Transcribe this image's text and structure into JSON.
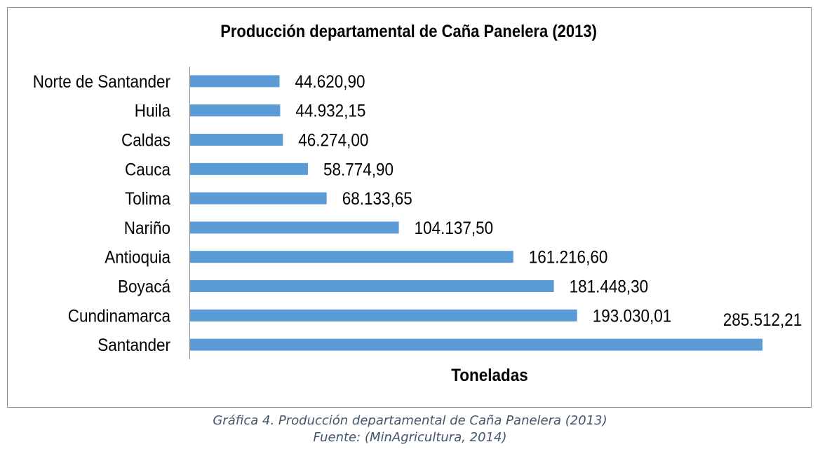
{
  "chart_data": {
    "type": "bar",
    "orientation": "horizontal",
    "title": "Producción departamental de Caña Panelera (2013)",
    "xlabel": "Toneladas",
    "ylabel": "",
    "categories": [
      "Norte de Santander",
      "Huila",
      "Caldas",
      "Cauca",
      "Tolima",
      "Nariño",
      "Antioquia",
      "Boyacá",
      "Cundinamarca",
      "Santander"
    ],
    "values": [
      44620.9,
      44932.15,
      46274.0,
      58774.9,
      68133.65,
      104137.5,
      161216.6,
      181448.3,
      193030.01,
      285512.21
    ],
    "data_labels": [
      "44.620,90",
      "44.932,15",
      "46.274,00",
      "58.774,90",
      "68.133,65",
      "104.137,50",
      "161.216,60",
      "181.448,30",
      "193.030,01",
      "285.512,21"
    ],
    "xlim": [
      0,
      285512.21
    ],
    "grid": false,
    "legend": "none",
    "bar_color": "#5b9bd5"
  },
  "caption": {
    "line1": "Gráfica 4. Producción departamental de Caña Panelera (2013)",
    "line2": "Fuente: (MinAgricultura, 2014)"
  }
}
